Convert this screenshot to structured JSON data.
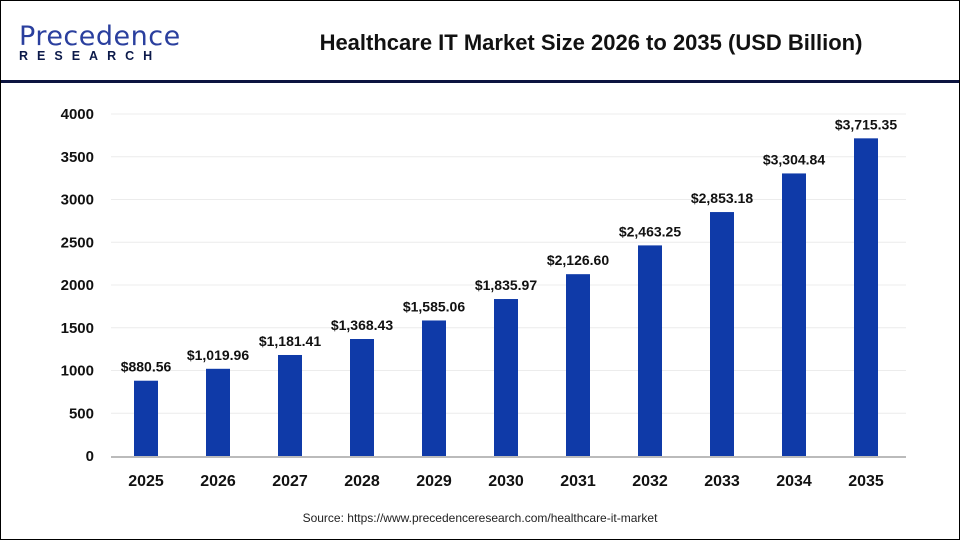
{
  "logo": {
    "line1": "Precedence",
    "line2": "RESEARCH"
  },
  "chart_data": {
    "type": "bar",
    "title": "Healthcare IT Market Size 2026 to 2035 (USD Billion)",
    "categories": [
      "2025",
      "2026",
      "2027",
      "2028",
      "2029",
      "2030",
      "2031",
      "2032",
      "2033",
      "2034",
      "2035"
    ],
    "values": [
      880.56,
      1019.96,
      1181.41,
      1368.43,
      1585.06,
      1835.97,
      2126.6,
      2463.25,
      2853.18,
      3304.84,
      3715.35
    ],
    "data_labels": [
      "$880.56",
      "$1,019.96",
      "$1,181.41",
      "$1,368.43",
      "$1,585.06",
      "$1,835.97",
      "$2,126.60",
      "$2,463.25",
      "$2,853.18",
      "$3,304.84",
      "$3,715.35"
    ],
    "yticks": [
      0,
      500,
      1000,
      1500,
      2000,
      2500,
      3000,
      3500,
      4000
    ],
    "ylim": [
      0,
      4000
    ],
    "grid": true,
    "bar_color": "#0f3aa8"
  },
  "source": "Source: https://www.precedenceresearch.com/healthcare-it-market"
}
